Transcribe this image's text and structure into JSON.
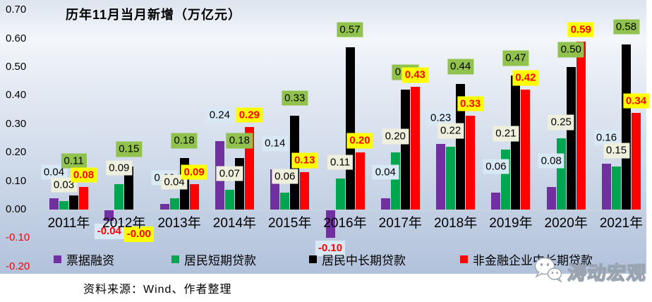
{
  "title": "历年11月当月新增（万亿元）",
  "source_note": "资料来源：Wind、作者整理",
  "watermark": {
    "text": "涛动宏观",
    "icon": "wechat-icon"
  },
  "colors": {
    "background_top": "#dce4ef",
    "background_bottom": "#b2c2db",
    "negative_text": "#ff0000",
    "axis_line": "#cdd3dc"
  },
  "chart_data": {
    "type": "bar",
    "title": "历年11月当月新增（万亿元）",
    "categories": [
      "2011年",
      "2012年",
      "2013年",
      "2014年",
      "2015年",
      "2016年",
      "2017年",
      "2018年",
      "2019年",
      "2020年",
      "2021年"
    ],
    "series": [
      {
        "name": "票据融资",
        "color": "#7030A0",
        "label_bg": "#d9e8f5",
        "values": [
          0.04,
          -0.04,
          0.02,
          0.24,
          0.14,
          -0.1,
          0.04,
          0.23,
          0.06,
          0.08,
          0.16
        ],
        "labels": [
          "0.04",
          "-0.04",
          "0.02",
          "0.24",
          "0.14",
          "-0.10",
          "0.04",
          "0.23",
          "0.06",
          "0.08",
          "0.16"
        ]
      },
      {
        "name": "居民短期贷款",
        "color": "#00A550",
        "label_bg": "#efefdd",
        "values": [
          0.03,
          0.09,
          0.04,
          0.07,
          0.06,
          0.11,
          0.2,
          0.22,
          0.21,
          0.25,
          0.15
        ],
        "labels": [
          "0.03",
          "0.09",
          "0.04",
          "0.07",
          "0.06",
          "0.11",
          "0.20",
          "0.22",
          "0.21",
          "0.25",
          "0.15"
        ]
      },
      {
        "name": "居民中长期贷款",
        "color": "#000000",
        "label_bg": "#92c24e",
        "values": [
          0.11,
          0.15,
          0.18,
          0.18,
          0.33,
          0.57,
          0.42,
          0.44,
          0.47,
          0.5,
          0.58
        ],
        "labels": [
          "0.11",
          "0.15",
          "0.18",
          "0.18",
          "0.33",
          "0.57",
          "0.42",
          "0.44",
          "0.47",
          "0.50",
          "0.58"
        ]
      },
      {
        "name": "非金融企业中长期贷款",
        "color": "#FF0000",
        "label_bg": "#ffff00",
        "label_text_bold_red": true,
        "values": [
          0.08,
          0.0,
          0.09,
          0.29,
          0.13,
          0.2,
          0.43,
          0.33,
          0.42,
          0.59,
          0.34
        ],
        "labels": [
          "0.08",
          "-0.00",
          "0.09",
          "0.29",
          "0.13",
          "0.20",
          "0.43",
          "0.33",
          "0.42",
          "0.59",
          "0.34"
        ]
      }
    ],
    "ylim": [
      -0.2,
      0.7
    ],
    "ytick_step": 0.1,
    "yticks": [
      "0.70",
      "0.60",
      "0.50",
      "0.40",
      "0.30",
      "0.20",
      "0.10",
      "0.00",
      "-0.10",
      "-0.20"
    ],
    "grid": false,
    "legend_position": "bottom",
    "bar_height_overrides": {
      "0": {
        "2": 0.05
      }
    }
  }
}
